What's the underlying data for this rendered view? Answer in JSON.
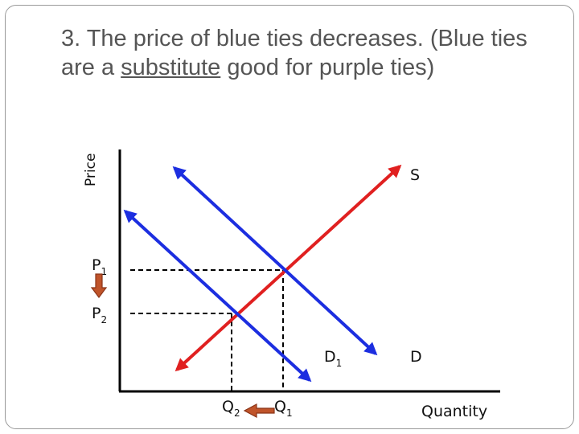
{
  "title": {
    "part1": "3. The price of blue ties decreases. (Blue ties are a ",
    "underlined": "substitute",
    "part2": " good for purple ties)"
  },
  "axes": {
    "y_label": "Price",
    "x_label": "Quantity"
  },
  "curves": {
    "supply_label": "S",
    "demand_original_label": "D",
    "demand_new_label_main": "D",
    "demand_new_label_sub": "1"
  },
  "prices": {
    "p1_main": "P",
    "p1_sub": "1",
    "p2_main": "P",
    "p2_sub": "2"
  },
  "quantities": {
    "q1_main": "Q",
    "q1_sub": "1",
    "q2_main": "Q",
    "q2_sub": "2"
  },
  "colors": {
    "supply": "#e02020",
    "demand": "#1c2ee0",
    "arrow_fill": "#c0542a",
    "arrow_stroke": "#8a3418",
    "title": "#555555"
  }
}
